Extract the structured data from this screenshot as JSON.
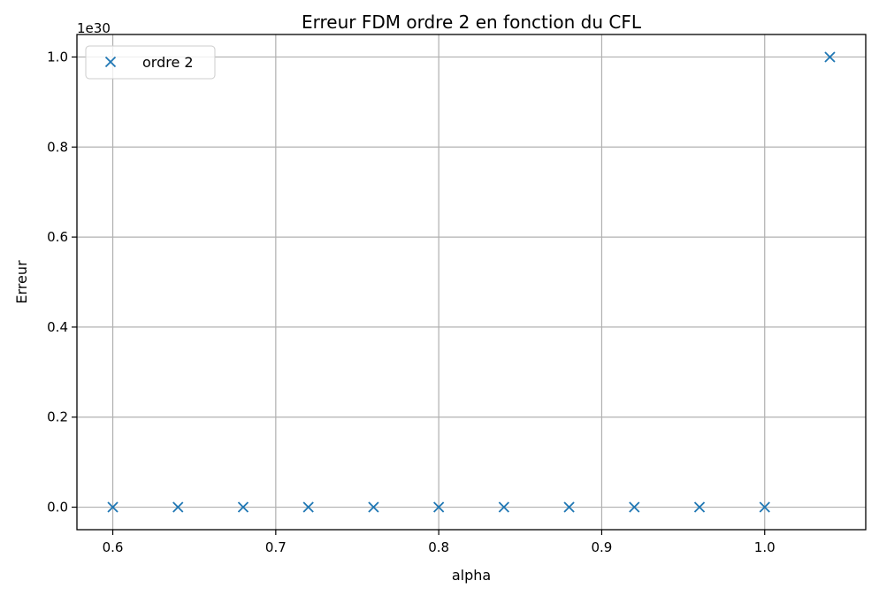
{
  "chart_data": {
    "type": "scatter",
    "title": "Erreur FDM ordre 2 en fonction du CFL",
    "xlabel": "alpha",
    "ylabel": "Erreur",
    "y_offset_label": "1e30",
    "y_scale_factor": 1e+30,
    "xlim": [
      0.578,
      1.062
    ],
    "ylim": [
      -0.05,
      1.05
    ],
    "x_ticks": [
      0.6,
      0.7,
      0.8,
      0.9,
      1.0
    ],
    "x_tick_labels": [
      "0.6",
      "0.7",
      "0.8",
      "0.9",
      "1.0"
    ],
    "y_ticks": [
      0.0,
      0.2,
      0.4,
      0.6,
      0.8,
      1.0
    ],
    "y_tick_labels": [
      "0.0",
      "0.2",
      "0.4",
      "0.6",
      "0.8",
      "1.0"
    ],
    "grid": true,
    "legend": "upper-left",
    "series": [
      {
        "name": "ordre 2",
        "color": "#1f77b4",
        "marker": "x",
        "x": [
          0.6,
          0.64,
          0.68,
          0.72,
          0.76,
          0.8,
          0.84,
          0.88,
          0.92,
          0.96,
          1.0,
          1.04
        ],
        "y": [
          0,
          0,
          0,
          0,
          0,
          0,
          0,
          0,
          0,
          0,
          0,
          1.0
        ]
      }
    ]
  }
}
